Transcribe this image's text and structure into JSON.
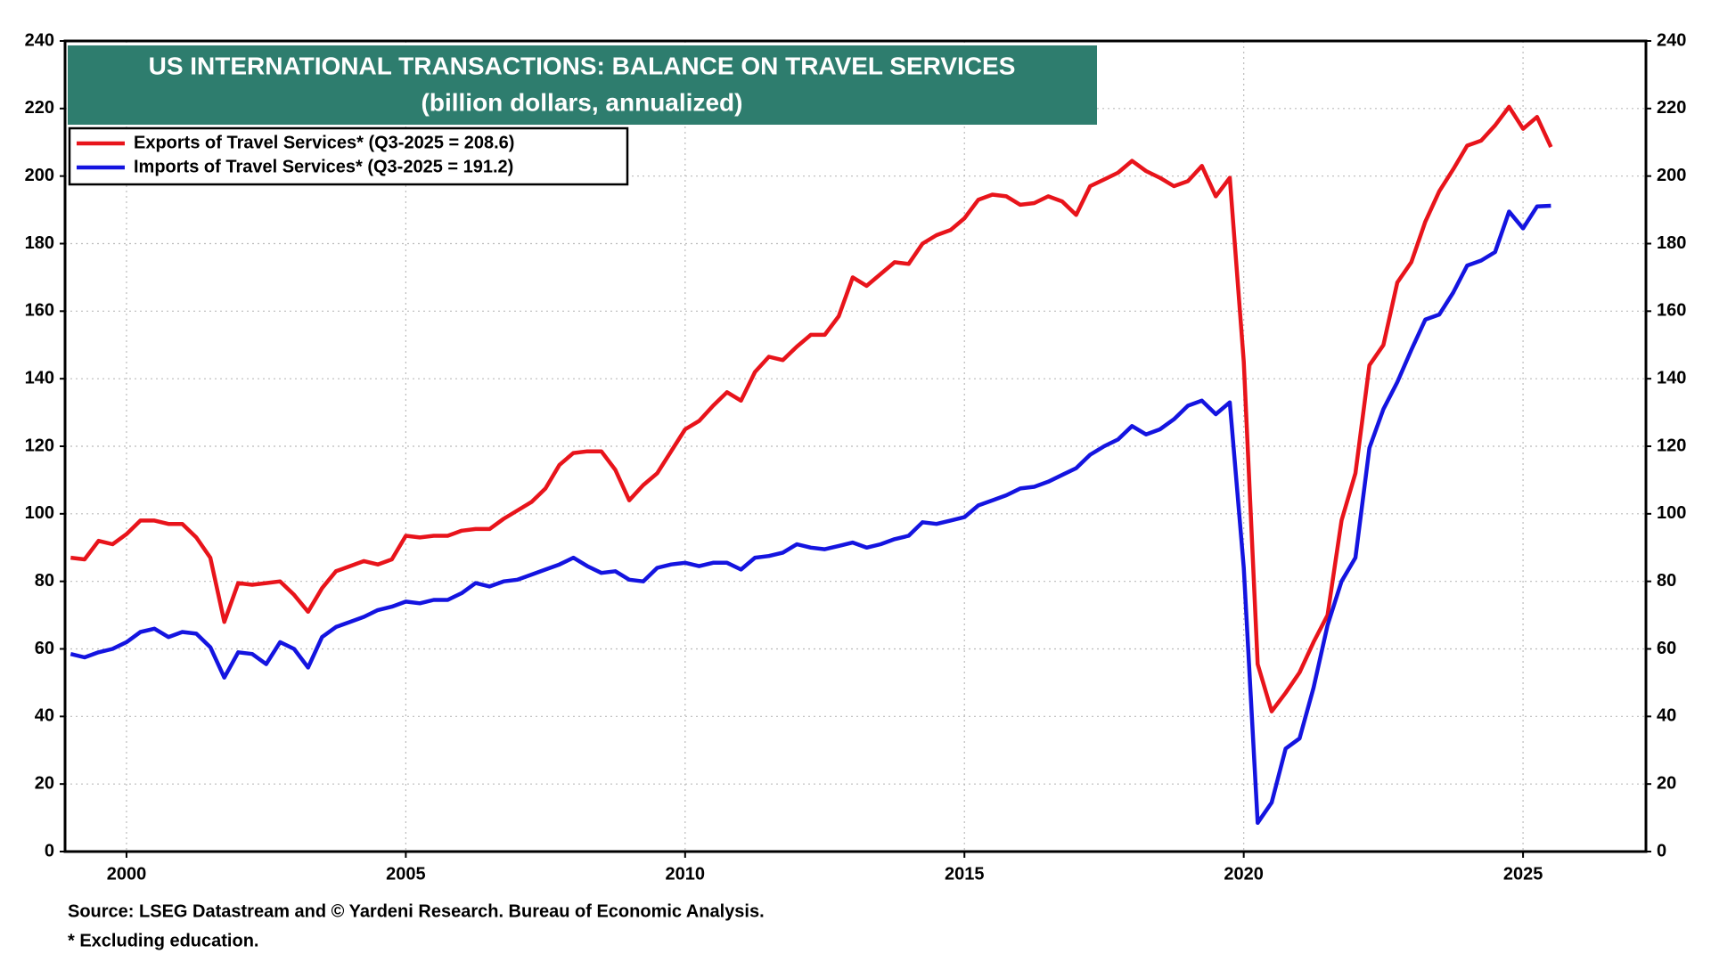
{
  "chart_data": {
    "type": "line",
    "title": "US INTERNATIONAL TRANSACTIONS: BALANCE ON TRAVEL SERVICES",
    "subtitle": "(billion dollars, annualized)",
    "source": "Source: LSEG Datastream and © Yardeni Research. Bureau of Economic Analysis.",
    "footnote": "* Excluding education.",
    "legend": "upper left",
    "grid": true,
    "xlim": [
      1998.9,
      2027.2
    ],
    "xticks": [
      2000,
      2005,
      2010,
      2015,
      2020,
      2025
    ],
    "ylim": [
      0,
      240
    ],
    "yticks": [
      0,
      20,
      40,
      60,
      80,
      100,
      120,
      140,
      160,
      180,
      200,
      220,
      240
    ],
    "x": [
      1999,
      1999.25,
      1999.5,
      1999.75,
      2000,
      2000.25,
      2000.5,
      2000.75,
      2001,
      2001.25,
      2001.5,
      2001.75,
      2002,
      2002.25,
      2002.5,
      2002.75,
      2003,
      2003.25,
      2003.5,
      2003.75,
      2004,
      2004.25,
      2004.5,
      2004.75,
      2005,
      2005.25,
      2005.5,
      2005.75,
      2006,
      2006.25,
      2006.5,
      2006.75,
      2007,
      2007.25,
      2007.5,
      2007.75,
      2008,
      2008.25,
      2008.5,
      2008.75,
      2009,
      2009.25,
      2009.5,
      2009.75,
      2010,
      2010.25,
      2010.5,
      2010.75,
      2011,
      2011.25,
      2011.5,
      2011.75,
      2012,
      2012.25,
      2012.5,
      2012.75,
      2013,
      2013.25,
      2013.5,
      2013.75,
      2014,
      2014.25,
      2014.5,
      2014.75,
      2015,
      2015.25,
      2015.5,
      2015.75,
      2016,
      2016.25,
      2016.5,
      2016.75,
      2017,
      2017.25,
      2017.5,
      2017.75,
      2018,
      2018.25,
      2018.5,
      2018.75,
      2019,
      2019.25,
      2019.5,
      2019.75,
      2020,
      2020.25,
      2020.5,
      2020.75,
      2021,
      2021.25,
      2021.5,
      2021.75,
      2022,
      2022.25,
      2022.5,
      2022.75,
      2023,
      2023.25,
      2023.5,
      2023.75,
      2024,
      2024.25,
      2024.5,
      2024.75,
      2025,
      2025.25,
      2025.5
    ],
    "series": [
      {
        "name": "Exports of Travel Services* (Q3-2025 = 208.6)",
        "color": "#e8141b",
        "values": [
          87,
          86.5,
          92,
          91,
          94,
          98,
          98,
          97,
          97,
          93,
          87,
          68,
          79.5,
          79,
          79.5,
          80,
          76,
          71,
          78,
          83,
          84.5,
          86,
          85,
          86.5,
          93.5,
          93,
          93.5,
          93.5,
          95,
          95.5,
          95.5,
          98.5,
          101,
          103.5,
          107.5,
          114.5,
          118,
          118.5,
          118.5,
          113,
          104,
          108.5,
          112,
          118.5,
          125,
          127.5,
          132,
          136,
          133.5,
          142,
          146.5,
          145.5,
          149.5,
          153,
          153,
          158.5,
          170,
          167.5,
          171,
          174.5,
          174,
          180,
          182.5,
          184,
          187.5,
          193,
          194.5,
          194,
          191.5,
          192,
          194,
          192.5,
          188.5,
          197,
          199,
          201,
          204.5,
          201.5,
          199.5,
          197,
          198.5,
          203,
          194,
          199.5,
          145,
          55.5,
          41.5,
          47,
          53,
          62,
          70,
          98,
          112,
          144,
          150,
          168.5,
          174.5,
          186.5,
          195.5,
          202,
          209,
          210.5,
          215,
          220.5,
          214,
          217.5,
          208.6
        ]
      },
      {
        "name": "Imports of Travel Services* (Q3-2025 = 191.2)",
        "color": "#1414e0",
        "values": [
          58.5,
          57.5,
          59,
          60,
          62,
          65,
          66,
          63.5,
          65,
          64.5,
          60.5,
          51.5,
          59,
          58.5,
          55.5,
          62,
          60,
          54.5,
          63.5,
          66.5,
          68,
          69.5,
          71.5,
          72.5,
          74,
          73.5,
          74.5,
          74.5,
          76.5,
          79.5,
          78.5,
          80,
          80.5,
          82,
          83.5,
          85,
          87,
          84.5,
          82.5,
          83,
          80.5,
          80,
          84,
          85,
          85.5,
          84.5,
          85.5,
          85.5,
          83.5,
          87,
          87.5,
          88.5,
          91,
          90,
          89.5,
          90.5,
          91.5,
          90,
          91,
          92.5,
          93.5,
          97.5,
          97,
          98,
          99,
          102.5,
          104,
          105.5,
          107.5,
          108,
          109.5,
          111.5,
          113.5,
          117.5,
          120,
          122,
          126,
          123.5,
          125,
          128,
          132,
          133.5,
          129.5,
          133,
          84,
          8.5,
          14.5,
          30.5,
          33.5,
          48.5,
          67,
          80,
          87,
          119.5,
          131,
          139,
          148.5,
          157.5,
          159,
          165.5,
          173.5,
          175,
          177.5,
          189.5,
          184.5,
          191,
          191.2
        ]
      }
    ]
  }
}
